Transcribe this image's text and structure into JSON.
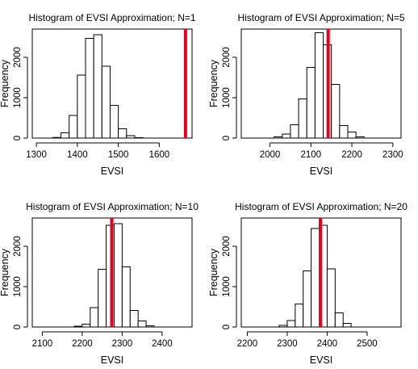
{
  "chart_data": [
    {
      "type": "bar",
      "title": "Histogram of EVSI Approximation; N=1",
      "xlabel": "EVSI",
      "ylabel": "Frequency",
      "xlim": [
        1290,
        1680
      ],
      "ylim": [
        0,
        2700
      ],
      "x_ticks": [
        1300,
        1400,
        1500,
        1600
      ],
      "y_ticks": [
        0,
        1000,
        2000
      ],
      "bin_edges": [
        1340,
        1360,
        1380,
        1400,
        1420,
        1440,
        1460,
        1480,
        1500,
        1520,
        1540,
        1560
      ],
      "values": [
        15,
        130,
        560,
        1560,
        2470,
        2560,
        1780,
        810,
        230,
        60,
        10
      ],
      "vline": {
        "x": 1664,
        "color": "#e8001c"
      }
    },
    {
      "type": "bar",
      "title": "Histogram of EVSI Approximation; N=5",
      "xlabel": "EVSI",
      "ylabel": "Frequency",
      "xlim": [
        1930,
        2320
      ],
      "ylim": [
        0,
        2700
      ],
      "x_ticks": [
        2000,
        2100,
        2200,
        2300
      ],
      "y_ticks": [
        0,
        1000,
        2000
      ],
      "bin_edges": [
        2010,
        2030,
        2050,
        2070,
        2090,
        2110,
        2130,
        2150,
        2170,
        2190,
        2210,
        2230
      ],
      "values": [
        30,
        100,
        330,
        970,
        1750,
        2610,
        2310,
        1330,
        310,
        150,
        30
      ],
      "vline": {
        "x": 2142,
        "color": "#e8001c"
      }
    },
    {
      "type": "bar",
      "title": "Histogram of EVSI Approximation; N=10",
      "xlabel": "EVSI",
      "ylabel": "Frequency",
      "xlim": [
        2075,
        2475
      ],
      "ylim": [
        0,
        2700
      ],
      "x_ticks": [
        2100,
        2200,
        2300,
        2400
      ],
      "y_ticks": [
        0,
        1000,
        2000
      ],
      "bin_edges": [
        2180,
        2200,
        2220,
        2240,
        2260,
        2280,
        2300,
        2320,
        2340,
        2360,
        2380
      ],
      "values": [
        20,
        70,
        480,
        1430,
        2520,
        2560,
        1490,
        410,
        150,
        30
      ],
      "vline": {
        "x": 2274,
        "color": "#e8001c"
      }
    },
    {
      "type": "bar",
      "title": "Histogram of EVSI Approximation; N=20",
      "xlabel": "EVSI",
      "ylabel": "Frequency",
      "xlim": [
        2185,
        2585
      ],
      "ylim": [
        0,
        2700
      ],
      "x_ticks": [
        2200,
        2300,
        2400,
        2500
      ],
      "y_ticks": [
        0,
        1000,
        2000
      ],
      "bin_edges": [
        2280,
        2300,
        2320,
        2340,
        2360,
        2380,
        2400,
        2420,
        2440,
        2460
      ],
      "values": [
        40,
        160,
        570,
        1390,
        2440,
        2520,
        1440,
        350,
        90
      ],
      "vline": {
        "x": 2383,
        "color": "#e8001c"
      }
    }
  ]
}
